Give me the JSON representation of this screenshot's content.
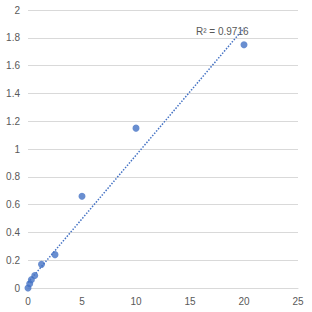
{
  "chart_data": {
    "type": "scatter",
    "annotation": "R² = 0.9716",
    "xlim": [
      0,
      25
    ],
    "xticks": [
      0,
      5,
      10,
      15,
      20,
      25
    ],
    "ylim": [
      0,
      2
    ],
    "yticks": [
      0,
      0.2,
      0.4,
      0.6,
      0.8,
      1,
      1.2,
      1.4,
      1.6,
      1.8,
      2
    ],
    "grid": true,
    "series": [
      {
        "type": "scatter",
        "color": "#4472c4",
        "marker": "circle",
        "x": [
          0,
          0.156,
          0.3125,
          0.625,
          1.25,
          2.5,
          5,
          10,
          20
        ],
        "values": [
          0.0,
          0.03,
          0.06,
          0.09,
          0.17,
          0.24,
          0.66,
          1.15,
          1.75
        ]
      },
      {
        "type": "line",
        "color": "#4472c4",
        "line_style": "dotted",
        "x": [
          0,
          20
        ],
        "values": [
          0.04,
          1.87
        ]
      }
    ]
  }
}
